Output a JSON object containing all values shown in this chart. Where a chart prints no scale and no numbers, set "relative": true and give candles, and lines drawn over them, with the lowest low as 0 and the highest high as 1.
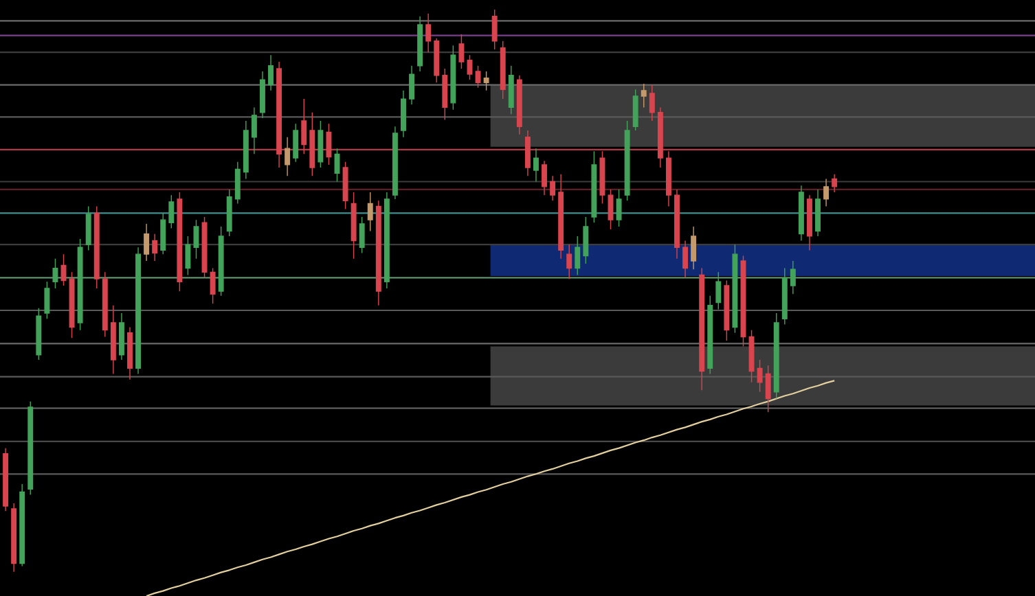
{
  "chart_data": {
    "type": "candlestick",
    "relative": true,
    "categories": [
      null,
      null,
      null,
      null,
      null,
      null,
      null,
      null,
      null,
      null,
      null,
      null,
      null,
      null,
      null,
      null,
      null,
      null,
      null,
      null,
      null,
      null,
      null,
      null,
      null,
      null,
      null,
      null,
      null,
      null,
      null,
      null,
      null,
      null,
      null,
      null,
      null,
      null,
      null,
      null,
      null,
      null,
      null,
      null,
      null,
      null,
      null,
      null,
      null,
      null,
      null,
      null,
      null,
      null,
      null,
      null,
      null,
      null,
      null,
      null,
      null,
      null,
      null,
      null,
      null,
      null,
      null,
      null,
      null,
      null,
      null,
      null,
      null,
      null,
      null,
      null,
      null,
      null,
      null,
      null,
      null,
      null,
      null,
      null,
      null,
      null,
      null,
      null,
      null,
      null,
      null,
      null,
      null,
      null,
      null,
      null,
      null,
      null,
      null,
      null,
      null
    ],
    "ohlc": [
      [
        0.21,
        0.22,
        0.108,
        0.117
      ],
      [
        0.112,
        0.122,
        0,
        0.015
      ],
      [
        0.015,
        0.156,
        0.01,
        0.142
      ],
      [
        0.147,
        0.303,
        0.137,
        0.293
      ],
      [
        0.386,
        0.469,
        0.377,
        0.455
      ],
      [
        0.46,
        0.516,
        0.45,
        0.504
      ],
      [
        0.516,
        0.557,
        0.504,
        0.54
      ],
      [
        0.545,
        0.565,
        0.509,
        0.518
      ],
      [
        0.521,
        0.533,
        0.416,
        0.435
      ],
      [
        0.443,
        0.592,
        0.43,
        0.577
      ],
      [
        0.582,
        0.65,
        0.572,
        0.636
      ],
      [
        0.638,
        0.65,
        0.504,
        0.521
      ],
      [
        0.521,
        0.533,
        0.418,
        0.43
      ],
      [
        0.443,
        0.474,
        0.352,
        0.377
      ],
      [
        0.386,
        0.46,
        0.377,
        0.443
      ],
      [
        0.425,
        0.435,
        0.342,
        0.362
      ],
      [
        0.362,
        0.577,
        0.352,
        0.565
      ],
      [
        0.565,
        0.619,
        0.553,
        0.601
      ],
      [
        0.589,
        0.601,
        0.553,
        0.567
      ],
      [
        0.572,
        0.638,
        0.565,
        0.626
      ],
      [
        0.621,
        0.67,
        0.611,
        0.658
      ],
      [
        0.663,
        0.675,
        0.499,
        0.516
      ],
      [
        0.54,
        0.597,
        0.528,
        0.582
      ],
      [
        0.577,
        0.626,
        0.557,
        0.614
      ],
      [
        0.621,
        0.631,
        0.523,
        0.533
      ],
      [
        0.533,
        0.54,
        0.477,
        0.494
      ],
      [
        0.499,
        0.614,
        0.491,
        0.597
      ],
      [
        0.606,
        0.68,
        0.597,
        0.667
      ],
      [
        0.663,
        0.729,
        0.655,
        0.716
      ],
      [
        0.711,
        0.802,
        0.699,
        0.785
      ],
      [
        0.773,
        0.826,
        0.743,
        0.812
      ],
      [
        0.817,
        0.89,
        0.807,
        0.875
      ],
      [
        0.866,
        0.919,
        0.856,
        0.9
      ],
      [
        0.895,
        0.907,
        0.719,
        0.743
      ],
      [
        0.753,
        0.773,
        0.704,
        0.724
      ],
      [
        0.736,
        0.797,
        0.729,
        0.785
      ],
      [
        0.802,
        0.841,
        0.743,
        0.76
      ],
      [
        0.785,
        0.817,
        0.704,
        0.719
      ],
      [
        0.729,
        0.802,
        0.719,
        0.785
      ],
      [
        0.782,
        0.797,
        0.724,
        0.738
      ],
      [
        0.709,
        0.753,
        0.694,
        0.743
      ],
      [
        0.719,
        0.729,
        0.645,
        0.66
      ],
      [
        0.655,
        0.675,
        0.557,
        0.589
      ],
      [
        0.577,
        0.631,
        0.567,
        0.619
      ],
      [
        0.626,
        0.675,
        0.606,
        0.655
      ],
      [
        0.65,
        0.66,
        0.474,
        0.499
      ],
      [
        0.516,
        0.675,
        0.504,
        0.663
      ],
      [
        0.67,
        0.792,
        0.663,
        0.78
      ],
      [
        0.785,
        0.856,
        0.773,
        0.841
      ],
      [
        0.841,
        0.9,
        0.831,
        0.885
      ],
      [
        0.9,
        0.988,
        0.89,
        0.973
      ],
      [
        0.973,
        0.993,
        0.924,
        0.944
      ],
      [
        0.944,
        0.949,
        0.87,
        0.883
      ],
      [
        0.883,
        0.895,
        0.804,
        0.826
      ],
      [
        0.834,
        0.936,
        0.822,
        0.919
      ],
      [
        0.939,
        0.956,
        0.895,
        0.907
      ],
      [
        0.91,
        0.919,
        0.875,
        0.885
      ],
      [
        0.89,
        0.9,
        0.861,
        0.87
      ],
      [
        0.87,
        0.89,
        0.856,
        0.878
      ],
      [
        0.988,
        1.0,
        0.929,
        0.944
      ],
      [
        0.932,
        0.944,
        0.841,
        0.858
      ],
      [
        0.826,
        0.9,
        0.814,
        0.883
      ],
      [
        0.875,
        0.883,
        0.778,
        0.792
      ],
      [
        0.773,
        0.785,
        0.704,
        0.719
      ],
      [
        0.714,
        0.753,
        0.694,
        0.736
      ],
      [
        0.724,
        0.731,
        0.67,
        0.685
      ],
      [
        0.694,
        0.704,
        0.66,
        0.67
      ],
      [
        0.675,
        0.707,
        0.557,
        0.572
      ],
      [
        0.565,
        0.582,
        0.521,
        0.54
      ],
      [
        0.54,
        0.597,
        0.528,
        0.577
      ],
      [
        0.562,
        0.631,
        0.548,
        0.614
      ],
      [
        0.631,
        0.748,
        0.621,
        0.724
      ],
      [
        0.736,
        0.748,
        0.655,
        0.67
      ],
      [
        0.67,
        0.68,
        0.609,
        0.626
      ],
      [
        0.626,
        0.68,
        0.614,
        0.663
      ],
      [
        0.67,
        0.802,
        0.66,
        0.785
      ],
      [
        0.792,
        0.858,
        0.785,
        0.846
      ],
      [
        0.846,
        0.868,
        0.826,
        0.856
      ],
      [
        0.851,
        0.866,
        0.802,
        0.817
      ],
      [
        0.817,
        0.826,
        0.719,
        0.736
      ],
      [
        0.736,
        0.748,
        0.65,
        0.67
      ],
      [
        0.67,
        0.68,
        0.557,
        0.577
      ],
      [
        0.577,
        0.589,
        0.523,
        0.54
      ],
      [
        0.553,
        0.614,
        0.538,
        0.597
      ],
      [
        0.528,
        0.54,
        0.323,
        0.357
      ],
      [
        0.362,
        0.491,
        0.352,
        0.474
      ],
      [
        0.479,
        0.533,
        0.467,
        0.516
      ],
      [
        0.509,
        0.518,
        0.411,
        0.43
      ],
      [
        0.435,
        0.582,
        0.425,
        0.565
      ],
      [
        0.553,
        0.562,
        0.401,
        0.418
      ],
      [
        0.418,
        0.43,
        0.337,
        0.357
      ],
      [
        0.362,
        0.377,
        0.32,
        0.337
      ],
      [
        0.352,
        0.367,
        0.284,
        0.308
      ],
      [
        0.32,
        0.46,
        0.308,
        0.443
      ],
      [
        0.45,
        0.54,
        0.44,
        0.523
      ],
      [
        0.509,
        0.553,
        0.494,
        0.538
      ],
      [
        0.601,
        0.687,
        0.589,
        0.675
      ],
      [
        0.663,
        0.67,
        0.572,
        0.597
      ],
      [
        0.606,
        0.68,
        0.597,
        0.663
      ],
      [
        0.663,
        0.699,
        0.65,
        0.685
      ],
      [
        0.699,
        0.707,
        0.675,
        0.685
      ]
    ],
    "colors": [
      "#d8454f",
      "#d8454f",
      "#43a35a",
      "#43a35a",
      "#43a35a",
      "#43a35a",
      "#43a35a",
      "#d8454f",
      "#d8454f",
      "#43a35a",
      "#43a35a",
      "#d8454f",
      "#d8454f",
      "#d8454f",
      "#43a35a",
      "#d8454f",
      "#43a35a",
      "#c49a6c",
      "#d8454f",
      "#43a35a",
      "#43a35a",
      "#d8454f",
      "#43a35a",
      "#43a35a",
      "#d8454f",
      "#d8454f",
      "#43a35a",
      "#43a35a",
      "#43a35a",
      "#43a35a",
      "#43a35a",
      "#43a35a",
      "#43a35a",
      "#d8454f",
      "#c49a6c",
      "#43a35a",
      "#d8454f",
      "#d8454f",
      "#43a35a",
      "#d8454f",
      "#43a35a",
      "#d8454f",
      "#d8454f",
      "#43a35a",
      "#c49a6c",
      "#d8454f",
      "#43a35a",
      "#43a35a",
      "#43a35a",
      "#43a35a",
      "#43a35a",
      "#d8454f",
      "#d8454f",
      "#d8454f",
      "#43a35a",
      "#d8454f",
      "#d8454f",
      "#d8454f",
      "#c49a6c",
      "#d8454f",
      "#d8454f",
      "#43a35a",
      "#d8454f",
      "#d8454f",
      "#43a35a",
      "#d8454f",
      "#d8454f",
      "#d8454f",
      "#d8454f",
      "#43a35a",
      "#43a35a",
      "#43a35a",
      "#d8454f",
      "#d8454f",
      "#43a35a",
      "#43a35a",
      "#43a35a",
      "#c49a6c",
      "#d8454f",
      "#d8454f",
      "#d8454f",
      "#d8454f",
      "#d8454f",
      "#c49a6c",
      "#d8454f",
      "#43a35a",
      "#43a35a",
      "#d8454f",
      "#43a35a",
      "#d8454f",
      "#d8454f",
      "#d8454f",
      "#d8454f",
      "#43a35a",
      "#43a35a",
      "#43a35a",
      "#43a35a",
      "#d8454f",
      "#43a35a",
      "#c49a6c",
      "#d8454f"
    ],
    "series": [
      {
        "type": "line",
        "color": "#e3d0a0",
        "values": [
          null,
          null,
          null,
          null,
          null,
          null,
          null,
          null,
          null,
          null,
          null,
          null,
          null,
          null,
          null,
          null,
          null,
          -0.043,
          -0.038,
          -0.034,
          -0.029,
          -0.025,
          -0.02,
          -0.015,
          -0.011,
          -0.006,
          -0.001,
          0.003,
          0.008,
          0.012,
          0.017,
          0.022,
          0.026,
          0.031,
          0.036,
          0.04,
          0.045,
          0.049,
          0.054,
          0.059,
          0.063,
          0.068,
          0.073,
          0.077,
          0.082,
          0.086,
          0.091,
          0.096,
          0.1,
          0.105,
          0.109,
          0.114,
          0.119,
          0.123,
          0.128,
          0.133,
          0.137,
          0.142,
          0.146,
          0.151,
          0.156,
          0.16,
          0.165,
          0.17,
          0.174,
          0.179,
          0.183,
          0.188,
          0.193,
          0.197,
          0.202,
          0.206,
          0.211,
          0.216,
          0.22,
          0.225,
          0.23,
          0.234,
          0.239,
          0.243,
          0.248,
          0.253,
          0.257,
          0.262,
          0.267,
          0.271,
          0.276,
          0.28,
          0.285,
          0.29,
          0.294,
          0.299,
          0.303,
          0.308,
          0.313,
          0.317,
          0.322,
          0.327,
          0.331,
          0.336,
          0.34
        ]
      }
    ],
    "bands": [
      {
        "axis": "y",
        "from": 0.756,
        "to": 0.866,
        "color": "#3b3b3b"
      },
      {
        "axis": "y",
        "from": 0.526,
        "to": 0.582,
        "color": "#0f2a72"
      },
      {
        "axis": "y",
        "from": 0.296,
        "to": 0.401,
        "color": "#3b3b3b"
      }
    ],
    "ref_lines": [
      {
        "axis": "y",
        "value": 0.98,
        "color": "#6b6b6b"
      },
      {
        "axis": "y",
        "value": 0.954,
        "color": "#7a3f8a"
      },
      {
        "axis": "y",
        "value": 0.924,
        "color": "#3c3c3c"
      },
      {
        "axis": "y",
        "value": 0.866,
        "color": "#6b6b6b"
      },
      {
        "axis": "y",
        "value": 0.809,
        "color": "#5a5a5a"
      },
      {
        "axis": "y",
        "value": 0.751,
        "color": "#b03a48"
      },
      {
        "axis": "y",
        "value": 0.694,
        "color": "#3c3c3c"
      },
      {
        "axis": "y",
        "value": 0.68,
        "color": "#5e1e26"
      },
      {
        "axis": "y",
        "value": 0.638,
        "color": "#3f8f8f"
      },
      {
        "axis": "y",
        "value": 0.582,
        "color": "#3c3c3c"
      },
      {
        "axis": "y",
        "value": 0.523,
        "color": "#6aa07a"
      },
      {
        "axis": "y",
        "value": 0.465,
        "color": "#5a5a5a"
      },
      {
        "axis": "y",
        "value": 0.406,
        "color": "#6b6b6b"
      },
      {
        "axis": "y",
        "value": 0.347,
        "color": "#5a5a5a"
      },
      {
        "axis": "y",
        "value": 0.291,
        "color": "#6b6b6b"
      },
      {
        "axis": "y",
        "value": 0.232,
        "color": "#4a4a4a"
      },
      {
        "axis": "y",
        "value": 0.174,
        "color": "#5a5a5a"
      }
    ]
  }
}
